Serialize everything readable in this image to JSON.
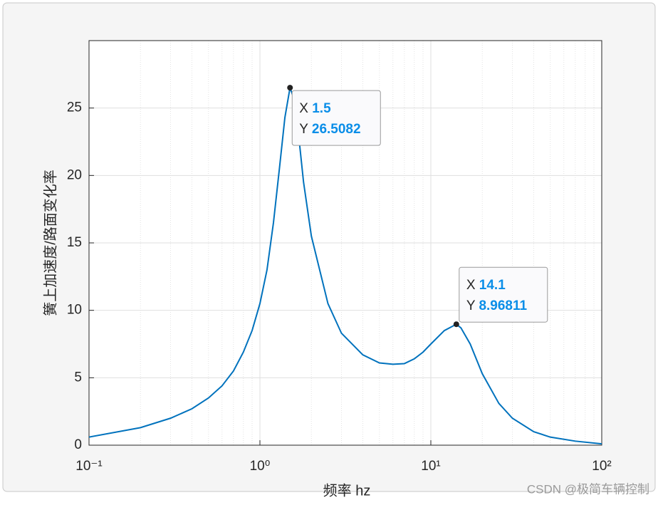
{
  "chart_data": {
    "type": "line",
    "x_label": "频率 hz",
    "y_label": "簧上加速度/路面变化率",
    "x": [
      0.1,
      0.2,
      0.3,
      0.4,
      0.5,
      0.6,
      0.7,
      0.8,
      0.9,
      1.0,
      1.1,
      1.2,
      1.3,
      1.4,
      1.5,
      1.6,
      1.7,
      1.8,
      2,
      2.5,
      3,
      4,
      5,
      6,
      7,
      8,
      9,
      10,
      12,
      14.1,
      15,
      17,
      20,
      25,
      30,
      40,
      50,
      70,
      100
    ],
    "series": [
      {
        "color": "#0072bd",
        "values": [
          0.6,
          1.3,
          2.0,
          2.7,
          3.5,
          4.4,
          5.5,
          6.9,
          8.5,
          10.5,
          13,
          16.5,
          20.5,
          24.3,
          26.5082,
          25.5,
          22.5,
          19.5,
          15.5,
          10.5,
          8.3,
          6.7,
          6.1,
          6.0,
          6.05,
          6.4,
          6.9,
          7.5,
          8.5,
          8.96811,
          8.7,
          7.5,
          5.3,
          3.1,
          2.0,
          1.0,
          0.6,
          0.3,
          0.1
        ]
      }
    ],
    "xlim": [
      0.1,
      100
    ],
    "log_x": true,
    "xticks": [
      {
        "value": 0.1,
        "label": "10⁻¹"
      },
      {
        "value": 1,
        "label": "10⁰"
      },
      {
        "value": 10,
        "label": "10¹"
      },
      {
        "value": 100,
        "label": "10²"
      }
    ],
    "ylim": [
      0,
      30
    ],
    "yticks": [
      0,
      5,
      10,
      15,
      20,
      25
    ],
    "grid": true,
    "minor_grid": true,
    "datatips": [
      {
        "x_name": "X",
        "x": 1.5,
        "y_name": "Y",
        "y": 26.5082
      },
      {
        "x_name": "X",
        "x": 14.1,
        "y_name": "Y",
        "y": 8.96811
      }
    ]
  },
  "watermark": "CSDN @极简车辆控制"
}
